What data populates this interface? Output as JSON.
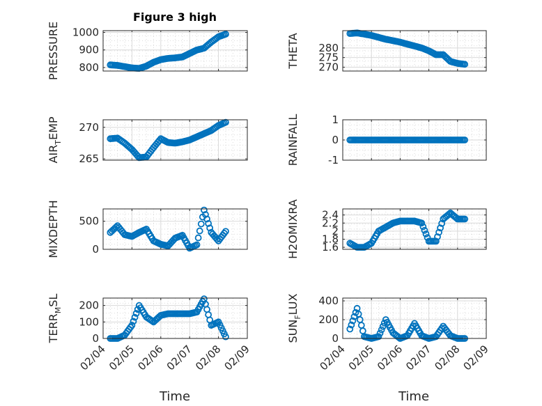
{
  "title": "Figure 3 high",
  "xlabel": "Time",
  "x_ticks": [
    "02/04",
    "02/05",
    "02/06",
    "02/07",
    "02/08",
    "02/09"
  ],
  "series_color": "#0072BD",
  "chart_data": [
    {
      "type": "scatter",
      "ylabel": "PRESSURE",
      "ylim": [
        780,
        1010
      ],
      "yticks": [
        "800",
        "900",
        "1000"
      ],
      "grid": true,
      "x": [
        "02/04 06:00",
        "02/04 12:00",
        "02/04 18:00",
        "02/05 00:00",
        "02/05 06:00",
        "02/05 12:00",
        "02/05 18:00",
        "02/06 00:00",
        "02/06 06:00",
        "02/06 12:00",
        "02/06 18:00",
        "02/07 00:00",
        "02/07 06:00",
        "02/07 12:00",
        "02/07 18:00",
        "02/08 00:00",
        "02/08 06:00"
      ],
      "y": [
        815,
        812,
        805,
        798,
        795,
        808,
        830,
        845,
        852,
        855,
        860,
        880,
        900,
        910,
        945,
        975,
        990
      ]
    },
    {
      "type": "scatter",
      "ylabel": "THETA",
      "ylim": [
        268,
        289
      ],
      "yticks": [
        "270",
        "275",
        "280"
      ],
      "grid": true,
      "x": [
        "02/04 06:00",
        "02/04 12:00",
        "02/04 18:00",
        "02/05 00:00",
        "02/05 06:00",
        "02/05 12:00",
        "02/05 18:00",
        "02/06 00:00",
        "02/06 06:00",
        "02/06 12:00",
        "02/06 18:00",
        "02/07 00:00",
        "02/07 06:00",
        "02/07 12:00",
        "02/07 18:00",
        "02/08 00:00",
        "02/08 06:00"
      ],
      "y": [
        287.5,
        287.8,
        287.2,
        286.5,
        285.5,
        284.5,
        283.8,
        283.0,
        282.0,
        281.0,
        280.0,
        278.5,
        276.5,
        276.5,
        273.0,
        272.0,
        271.5
      ]
    },
    {
      "type": "scatter",
      "ylabel": "AIR_TEMP",
      "ylim": [
        264.8,
        271.2
      ],
      "yticks": [
        "265",
        "270"
      ],
      "grid": true,
      "x": [
        "02/04 06:00",
        "02/04 12:00",
        "02/04 18:00",
        "02/05 00:00",
        "02/05 06:00",
        "02/05 12:00",
        "02/05 18:00",
        "02/06 00:00",
        "02/06 06:00",
        "02/06 12:00",
        "02/06 18:00",
        "02/07 00:00",
        "02/07 06:00",
        "02/07 12:00",
        "02/07 18:00",
        "02/08 00:00",
        "02/08 06:00"
      ],
      "y": [
        268.2,
        268.3,
        267.5,
        266.5,
        265.2,
        265.3,
        266.8,
        268.2,
        267.6,
        267.5,
        267.7,
        268.0,
        268.5,
        269.0,
        269.5,
        270.3,
        270.8
      ]
    },
    {
      "type": "scatter",
      "ylabel": "RAINFALL",
      "ylim": [
        -1,
        1
      ],
      "yticks": [
        "-1",
        "0",
        "1"
      ],
      "grid": true,
      "x": [
        "02/04 06:00",
        "02/04 12:00",
        "02/04 18:00",
        "02/05 00:00",
        "02/05 06:00",
        "02/05 12:00",
        "02/05 18:00",
        "02/06 00:00",
        "02/06 06:00",
        "02/06 12:00",
        "02/06 18:00",
        "02/07 00:00",
        "02/07 06:00",
        "02/07 12:00",
        "02/07 18:00",
        "02/08 00:00",
        "02/08 06:00"
      ],
      "y": [
        0,
        0,
        0,
        0,
        0,
        0,
        0,
        0,
        0,
        0,
        0,
        0,
        0,
        0,
        0,
        0,
        0
      ]
    },
    {
      "type": "scatter",
      "ylabel": "MIXDEPTH",
      "ylim": [
        0,
        720
      ],
      "yticks": [
        "0",
        "500"
      ],
      "grid": true,
      "x": [
        "02/04 06:00",
        "02/04 12:00",
        "02/04 18:00",
        "02/05 00:00",
        "02/05 06:00",
        "02/05 12:00",
        "02/05 18:00",
        "02/06 00:00",
        "02/06 06:00",
        "02/06 12:00",
        "02/06 18:00",
        "02/07 00:00",
        "02/07 06:00",
        "02/07 12:00",
        "02/07 18:00",
        "02/08 00:00",
        "02/08 06:00"
      ],
      "y": [
        300,
        420,
        260,
        230,
        300,
        360,
        150,
        90,
        60,
        200,
        250,
        20,
        80,
        700,
        300,
        150,
        320
      ]
    },
    {
      "type": "scatter",
      "ylabel": "H2OMIXRA",
      "ylim": [
        1.55,
        2.55
      ],
      "yticks": [
        "1.6",
        "1.8",
        "2",
        "2.2",
        "2.4"
      ],
      "grid": true,
      "x": [
        "02/04 06:00",
        "02/04 12:00",
        "02/04 18:00",
        "02/05 00:00",
        "02/05 06:00",
        "02/05 12:00",
        "02/05 18:00",
        "02/06 00:00",
        "02/06 06:00",
        "02/06 12:00",
        "02/06 18:00",
        "02/07 00:00",
        "02/07 06:00",
        "02/07 12:00",
        "02/07 18:00",
        "02/08 00:00",
        "02/08 06:00"
      ],
      "y": [
        1.7,
        1.6,
        1.6,
        1.7,
        2.0,
        2.1,
        2.2,
        2.25,
        2.25,
        2.25,
        2.2,
        1.75,
        1.75,
        2.3,
        2.45,
        2.3,
        2.3
      ]
    },
    {
      "type": "scatter",
      "ylabel": "TERR_MSL",
      "ylim": [
        0,
        245
      ],
      "yticks": [
        "0",
        "100",
        "200"
      ],
      "grid": true,
      "x": [
        "02/04 06:00",
        "02/04 12:00",
        "02/04 18:00",
        "02/05 00:00",
        "02/05 06:00",
        "02/05 12:00",
        "02/05 18:00",
        "02/06 00:00",
        "02/06 06:00",
        "02/06 12:00",
        "02/06 18:00",
        "02/07 00:00",
        "02/07 06:00",
        "02/07 12:00",
        "02/07 18:00",
        "02/08 00:00",
        "02/08 06:00"
      ],
      "y": [
        0,
        0,
        20,
        80,
        200,
        130,
        100,
        140,
        150,
        150,
        150,
        150,
        160,
        240,
        80,
        100,
        10
      ]
    },
    {
      "type": "scatter",
      "ylabel": "SUN_FLUX",
      "ylim": [
        0,
        430
      ],
      "yticks": [
        "0",
        "200",
        "400"
      ],
      "grid": true,
      "x": [
        "02/04 06:00",
        "02/04 12:00",
        "02/04 18:00",
        "02/05 00:00",
        "02/05 06:00",
        "02/05 12:00",
        "02/05 18:00",
        "02/06 00:00",
        "02/06 06:00",
        "02/06 12:00",
        "02/06 18:00",
        "02/07 00:00",
        "02/07 06:00",
        "02/07 12:00",
        "02/07 18:00",
        "02/08 00:00",
        "02/08 06:00"
      ],
      "y": [
        100,
        320,
        20,
        0,
        20,
        200,
        60,
        0,
        30,
        160,
        30,
        0,
        20,
        130,
        30,
        0,
        0
      ]
    }
  ]
}
